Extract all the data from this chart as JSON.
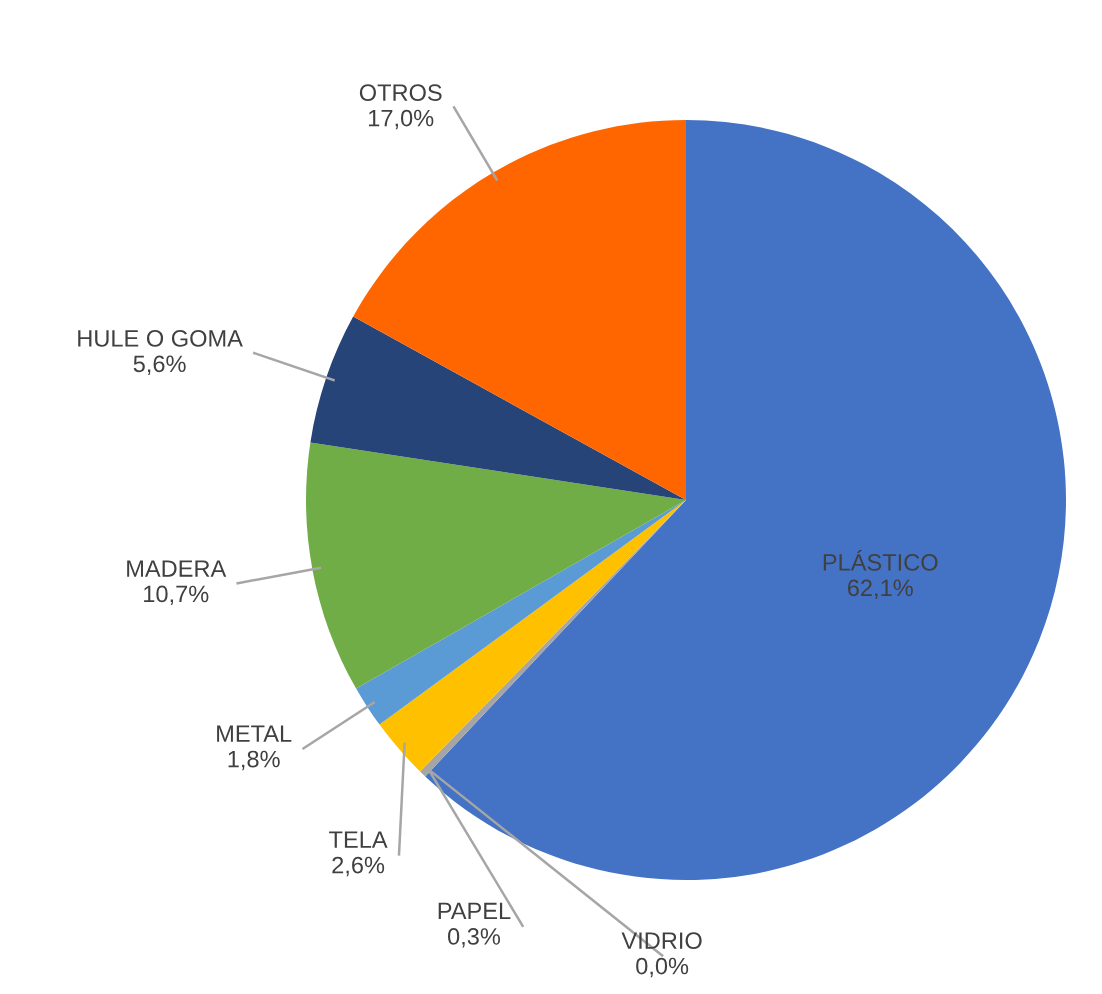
{
  "chart_data": {
    "type": "pie",
    "categories": [
      "PLÁSTICO",
      "VIDRIO",
      "PAPEL",
      "TELA",
      "METAL",
      "MADERA",
      "HULE O GOMA",
      "OTROS"
    ],
    "values": [
      62.1,
      0.0,
      0.3,
      2.6,
      1.8,
      10.7,
      5.6,
      17.0
    ],
    "value_labels": [
      "62,1%",
      "0,0%",
      "0,3%",
      "2,6%",
      "1,8%",
      "10,7%",
      "5,6%",
      "17,0%"
    ],
    "colors": [
      "#4472c4",
      "#9e480e",
      "#a5a5a5",
      "#ffc000",
      "#5b9bd5",
      "#70ad47",
      "#264478",
      "#ff6600"
    ],
    "legend": false
  }
}
